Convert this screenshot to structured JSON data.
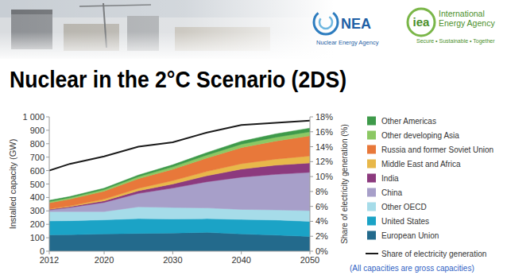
{
  "header": {
    "logos": [
      {
        "acronym": "NEA",
        "name_lines": [
          "Nuclear Energy Agency"
        ]
      },
      {
        "acronym": "iea",
        "name_lines": [
          "International",
          "Energy Agency"
        ],
        "tagline": "Secure • Sustainable • Together"
      }
    ]
  },
  "chart_data": {
    "type": "area",
    "title": "Nuclear in the 2°C Scenario (2DS)",
    "y_label": "Installed capacity (GW)",
    "y2_label": "Share of electricity generation (%)",
    "annotations": [
      "(All capacities are gross capacities)"
    ],
    "stacked": true,
    "grid": false,
    "legend": "right",
    "x": [
      2012,
      2015,
      2020,
      2025,
      2030,
      2035,
      2040,
      2045,
      2050
    ],
    "xlim": [
      2012,
      2050
    ],
    "xticks": [
      2012,
      2020,
      2030,
      2040,
      2050
    ],
    "ylim": [
      0,
      1000
    ],
    "yticks": [
      0,
      100,
      200,
      300,
      400,
      500,
      600,
      700,
      800,
      900,
      {
        "value": 1000,
        "label": "1 000"
      }
    ],
    "y2lim": [
      0,
      18
    ],
    "y2ticks": [
      {
        "value": 0,
        "label": "0%"
      },
      {
        "value": 2,
        "label": "2%"
      },
      {
        "value": 4,
        "label": "4%"
      },
      {
        "value": 6,
        "label": "6%"
      },
      {
        "value": 8,
        "label": "8%"
      },
      {
        "value": 10,
        "label": "10%"
      },
      {
        "value": 12,
        "label": "12%"
      },
      {
        "value": 14,
        "label": "14%"
      },
      {
        "value": 16,
        "label": "16%"
      },
      {
        "value": 18,
        "label": "18%"
      }
    ],
    "series": [
      {
        "name": "European Union",
        "color": "#236a8c",
        "values": [
          122,
          123,
          128,
          132,
          135,
          140,
          128,
          120,
          110
        ]
      },
      {
        "name": "United States",
        "color": "#1ba3c6",
        "values": [
          103,
          104,
          105,
          110,
          105,
          102,
          108,
          112,
          112
        ]
      },
      {
        "name": "Other OECD",
        "color": "#a6dce9",
        "values": [
          70,
          68,
          62,
          88,
          85,
          80,
          75,
          75,
          80
        ]
      },
      {
        "name": "China",
        "color": "#a79fc9",
        "values": [
          12,
          30,
          68,
          100,
          145,
          195,
          240,
          265,
          285
        ]
      },
      {
        "name": "India",
        "color": "#8c3a7e",
        "values": [
          5,
          7,
          12,
          20,
          30,
          45,
          60,
          68,
          70
        ]
      },
      {
        "name": "Middle East and Africa",
        "color": "#e8b84a",
        "values": [
          3,
          5,
          12,
          18,
          25,
          32,
          40,
          45,
          52
        ]
      },
      {
        "name": "Russia and former Soviet Union",
        "color": "#e8783a",
        "values": [
          45,
          50,
          60,
          72,
          85,
          100,
          120,
          135,
          150
        ]
      },
      {
        "name": "Other developing Asia",
        "color": "#8cc864",
        "values": [
          10,
          11,
          12,
          15,
          18,
          22,
          25,
          28,
          30
        ]
      },
      {
        "name": "Other Americas",
        "color": "#3e9a4a",
        "values": [
          8,
          9,
          10,
          12,
          15,
          18,
          22,
          25,
          27
        ]
      },
      {
        "name": "Share of electricity generation",
        "type": "line",
        "axis": "y2",
        "color": "#1a1a1a",
        "values": [
          10.8,
          11.7,
          12.7,
          14.0,
          14.6,
          15.9,
          16.9,
          17.2,
          17.5
        ]
      }
    ]
  }
}
